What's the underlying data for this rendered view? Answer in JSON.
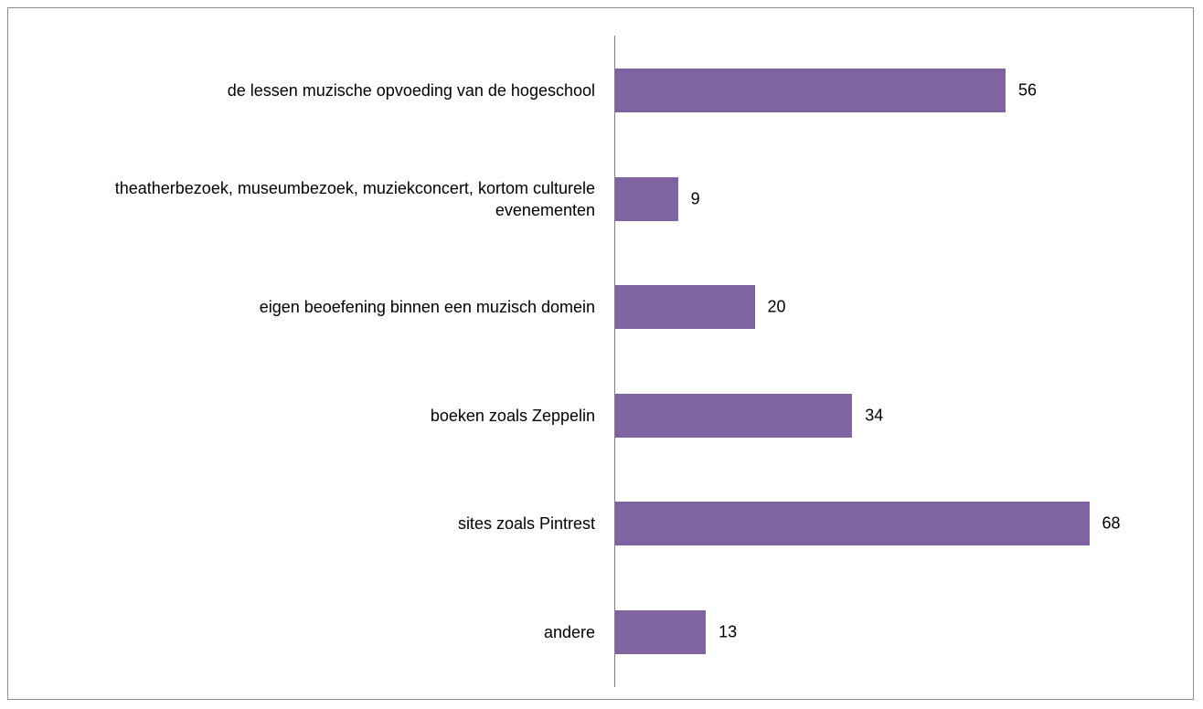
{
  "chart_data": {
    "type": "bar",
    "orientation": "horizontal",
    "categories": [
      "de lessen muzische opvoeding van de hogeschool",
      "theatherbezoek, museumbezoek, muziekconcert, kortom culturele evenementen",
      "eigen beoefening binnen een muzisch domein",
      "boeken zoals Zeppelin",
      "sites zoals Pintrest",
      "andere"
    ],
    "values": [
      56,
      9,
      20,
      34,
      68,
      13
    ],
    "color": "#8064a2"
  }
}
